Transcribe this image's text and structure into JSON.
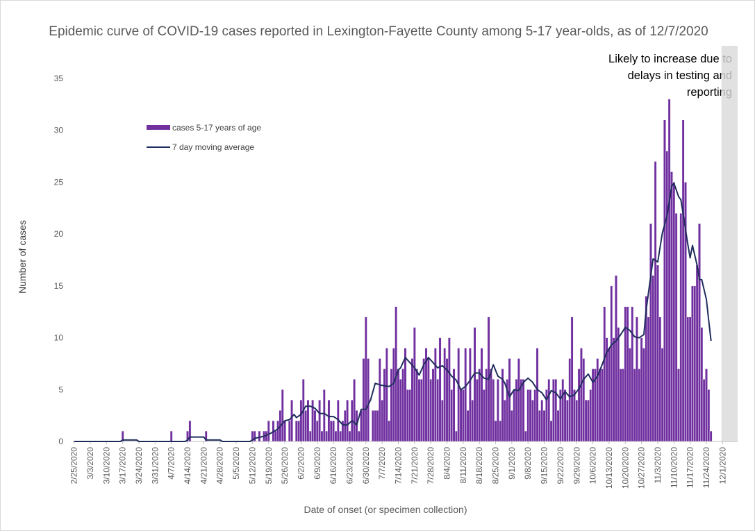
{
  "chart_data": {
    "type": "bar",
    "title": "Epidemic curve of COVID-19 cases reported in Lexington-Fayette County among 5-17 year-olds, as of 12/7/2020",
    "xlabel": "Date of onset (or specimen collection)",
    "ylabel": "Number of cases",
    "ylim": [
      0,
      35
    ],
    "yticks": [
      0,
      5,
      10,
      15,
      20,
      25,
      30,
      35
    ],
    "grid": false,
    "legend_position": "upper-left",
    "annotation": "Likely to increase due to delays in testing and reporting",
    "x_start_date": "2/25/2020",
    "x_end_date": "12/7/2020",
    "shaded_range": [
      "12/1/2020",
      "12/7/2020"
    ],
    "x_tick_labels": [
      "2/25/2020",
      "3/3/2020",
      "3/10/2020",
      "3/17/2020",
      "3/24/2020",
      "3/31/2020",
      "4/7/2020",
      "4/14/2020",
      "4/21/2020",
      "4/28/2020",
      "5/5/2020",
      "5/12/2020",
      "5/19/2020",
      "5/26/2020",
      "6/2/2020",
      "6/9/2020",
      "6/16/2020",
      "6/23/2020",
      "6/30/2020",
      "7/7/2020",
      "7/14/2020",
      "7/21/2020",
      "7/28/2020",
      "8/4/2020",
      "8/11/2020",
      "8/18/2020",
      "8/25/2020",
      "9/1/2020",
      "9/8/2020",
      "9/15/2020",
      "9/22/2020",
      "9/29/2020",
      "10/6/2020",
      "10/13/2020",
      "10/20/2020",
      "10/27/2020",
      "11/3/2020",
      "11/10/2020",
      "11/17/2020",
      "11/24/2020",
      "12/1/2020"
    ],
    "series": [
      {
        "name": "cases 5-17 years of age",
        "type": "bar",
        "color": "#7030a0",
        "values": [
          0,
          0,
          0,
          0,
          0,
          0,
          0,
          0,
          0,
          0,
          0,
          0,
          0,
          0,
          0,
          0,
          0,
          0,
          0,
          0,
          0,
          1,
          0,
          0,
          0,
          0,
          0,
          0,
          0,
          0,
          0,
          0,
          0,
          0,
          0,
          0,
          0,
          0,
          0,
          0,
          0,
          0,
          1,
          0,
          0,
          0,
          0,
          0,
          0,
          1,
          2,
          0,
          0,
          0,
          0,
          0,
          0,
          1,
          0,
          0,
          0,
          0,
          0,
          0,
          0,
          0,
          0,
          0,
          0,
          0,
          0,
          0,
          0,
          0,
          0,
          0,
          0,
          1,
          1,
          0,
          1,
          0,
          1,
          1,
          2,
          0,
          2,
          1,
          2,
          3,
          5,
          2,
          0,
          2,
          4,
          0,
          2,
          2,
          4,
          6,
          3,
          4,
          1,
          4,
          3,
          2,
          4,
          1,
          5,
          1,
          4,
          2,
          2,
          1,
          4,
          1,
          2,
          3,
          4,
          1,
          4,
          6,
          3,
          1,
          3,
          8,
          12,
          8,
          0,
          3,
          3,
          3,
          8,
          4,
          7,
          9,
          2,
          7,
          9,
          13,
          7,
          6,
          7,
          9,
          5,
          5,
          8,
          11,
          7,
          6,
          6,
          8,
          9,
          8,
          6,
          7,
          9,
          6,
          10,
          4,
          9,
          8,
          10,
          5,
          7,
          1,
          9,
          5,
          5,
          9,
          3,
          9,
          4,
          11,
          6,
          7,
          9,
          5,
          7,
          12,
          7,
          6,
          2,
          6,
          2,
          7,
          4,
          6,
          8,
          3,
          5,
          6,
          8,
          6,
          6,
          1,
          5,
          5,
          4,
          5,
          9,
          3,
          4,
          3,
          5,
          6,
          2,
          6,
          6,
          3,
          5,
          6,
          5,
          4,
          8,
          12,
          5,
          4,
          7,
          9,
          8,
          4,
          4,
          5,
          7,
          7,
          8,
          7,
          7,
          13,
          10,
          9,
          15,
          10,
          16,
          11,
          7,
          7,
          13,
          13,
          9,
          13,
          7,
          12,
          7,
          10,
          9,
          14,
          12,
          21,
          16,
          27,
          17,
          12,
          9,
          31,
          28,
          33,
          26,
          25,
          22,
          7,
          22,
          31,
          25,
          12,
          12,
          15,
          15,
          17,
          21,
          11,
          6,
          7,
          5,
          1
        ]
      },
      {
        "name": "7 day moving average",
        "type": "line",
        "color": "#1f2d5c",
        "points": [
          [
            0,
            0
          ],
          [
            20,
            0
          ],
          [
            21,
            0.14
          ],
          [
            27,
            0.14
          ],
          [
            28,
            0
          ],
          [
            48,
            0
          ],
          [
            49,
            0.14
          ],
          [
            50,
            0.43
          ],
          [
            56,
            0.43
          ],
          [
            57,
            0.14
          ],
          [
            63,
            0.14
          ],
          [
            64,
            0
          ],
          [
            76,
            0
          ],
          [
            78,
            0.3
          ],
          [
            82,
            0.5
          ],
          [
            85,
            0.8
          ],
          [
            88,
            1.2
          ],
          [
            91,
            2.0
          ],
          [
            93,
            2.1
          ],
          [
            95,
            2.6
          ],
          [
            96,
            2.3
          ],
          [
            98,
            2.6
          ],
          [
            100,
            3.4
          ],
          [
            102,
            3.4
          ],
          [
            104,
            3.2
          ],
          [
            106,
            2.7
          ],
          [
            108,
            2.7
          ],
          [
            110,
            2.4
          ],
          [
            112,
            2.4
          ],
          [
            114,
            2.1
          ],
          [
            116,
            1.6
          ],
          [
            118,
            1.6
          ],
          [
            120,
            2.0
          ],
          [
            122,
            1.6
          ],
          [
            124,
            3.1
          ],
          [
            126,
            3.1
          ],
          [
            128,
            4.0
          ],
          [
            130,
            5.6
          ],
          [
            133,
            5.4
          ],
          [
            136,
            5.3
          ],
          [
            138,
            5.6
          ],
          [
            140,
            6.9
          ],
          [
            141,
            7.1
          ],
          [
            143,
            8.1
          ],
          [
            145,
            7.6
          ],
          [
            147,
            7.1
          ],
          [
            149,
            6.4
          ],
          [
            151,
            7.4
          ],
          [
            153,
            8.1
          ],
          [
            155,
            7.6
          ],
          [
            157,
            7.1
          ],
          [
            159,
            7.3
          ],
          [
            161,
            6.9
          ],
          [
            163,
            6.3
          ],
          [
            165,
            5.9
          ],
          [
            167,
            5.0
          ],
          [
            169,
            5.3
          ],
          [
            171,
            5.9
          ],
          [
            173,
            6.6
          ],
          [
            175,
            6.6
          ],
          [
            177,
            6.1
          ],
          [
            179,
            6.0
          ],
          [
            181,
            7.4
          ],
          [
            183,
            6.3
          ],
          [
            185,
            6.0
          ],
          [
            186,
            5.6
          ],
          [
            188,
            4.3
          ],
          [
            190,
            5.0
          ],
          [
            192,
            4.9
          ],
          [
            194,
            5.7
          ],
          [
            196,
            6.1
          ],
          [
            198,
            5.7
          ],
          [
            200,
            5.0
          ],
          [
            202,
            4.7
          ],
          [
            204,
            4.0
          ],
          [
            206,
            4.9
          ],
          [
            208,
            4.7
          ],
          [
            210,
            4.1
          ],
          [
            212,
            4.8
          ],
          [
            214,
            4.3
          ],
          [
            216,
            4.5
          ],
          [
            218,
            5.1
          ],
          [
            220,
            6.0
          ],
          [
            222,
            6.5
          ],
          [
            224,
            5.7
          ],
          [
            226,
            6.3
          ],
          [
            228,
            7.4
          ],
          [
            230,
            8.6
          ],
          [
            232,
            9.3
          ],
          [
            234,
            9.7
          ],
          [
            236,
            10.3
          ],
          [
            238,
            11.0
          ],
          [
            240,
            10.7
          ],
          [
            242,
            10.1
          ],
          [
            244,
            10.0
          ],
          [
            246,
            10.3
          ],
          [
            247,
            12.7
          ],
          [
            249,
            16.0
          ],
          [
            250,
            17.6
          ],
          [
            252,
            17.3
          ],
          [
            254,
            20.1
          ],
          [
            256,
            21.7
          ],
          [
            258,
            24.6
          ],
          [
            259,
            24.9
          ],
          [
            261,
            23.6
          ],
          [
            262,
            23.3
          ],
          [
            263,
            21.9
          ],
          [
            265,
            19.0
          ],
          [
            266,
            17.7
          ],
          [
            267,
            18.9
          ],
          [
            269,
            17.0
          ],
          [
            270,
            15.6
          ],
          [
            271,
            15.6
          ],
          [
            273,
            13.7
          ],
          [
            274,
            11.7
          ],
          [
            275,
            9.7
          ]
        ]
      }
    ]
  }
}
